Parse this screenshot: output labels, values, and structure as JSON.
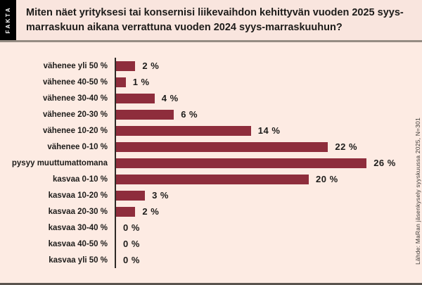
{
  "fakta_label": "FAKTA",
  "title": "Miten näet yrityksesi tai konsernisi liikevaihdon kehittyvän vuoden 2025 syys-marraskuun aikana verrattuna vuoden 2024 syys-marraskuuhun?",
  "source": "Lähde: MaRan jäsenkysely syyskuussa 2025, N=301",
  "colors": {
    "bar": "#8e2d3c",
    "chart_background": "#fdebe3",
    "title_background": "#f9e5de",
    "fakta_background": "#000000",
    "axis": "#2e2a26",
    "divider": "#958c83",
    "text": "#1d1c1a"
  },
  "chart_data": {
    "type": "bar",
    "orientation": "horizontal",
    "title": "Miten näet yrityksesi tai konsernisi liikevaihdon kehittyvän vuoden 2025 syys-marraskuun aikana verrattuna vuoden 2024 syys-marraskuuhun?",
    "categories": [
      "vähenee yli 50 %",
      "vähenee 40-50 %",
      "vähenee 30-40 %",
      "vähenee 20-30 %",
      "vähenee 10-20 %",
      "vähenee 0-10 %",
      "pysyy muuttumattomana",
      "kasvaa 0-10 %",
      "kasvaa 10-20 %",
      "kasvaa 20-30 %",
      "kasvaa 30-40 %",
      "kasvaa 40-50 %",
      "kasvaa yli 50 %"
    ],
    "values": [
      2,
      1,
      4,
      6,
      14,
      22,
      26,
      20,
      3,
      2,
      0,
      0,
      0
    ],
    "value_labels": [
      "2 %",
      "1 %",
      "4 %",
      "6 %",
      "14 %",
      "22 %",
      "26 %",
      "20 %",
      "3 %",
      "2 %",
      "0 %",
      "0 %",
      "0 %"
    ],
    "unit": "%",
    "xlim": [
      0,
      26
    ],
    "grid": false,
    "legend": false,
    "source": "Lähde: MaRan jäsenkysely syyskuussa 2025, N=301"
  }
}
